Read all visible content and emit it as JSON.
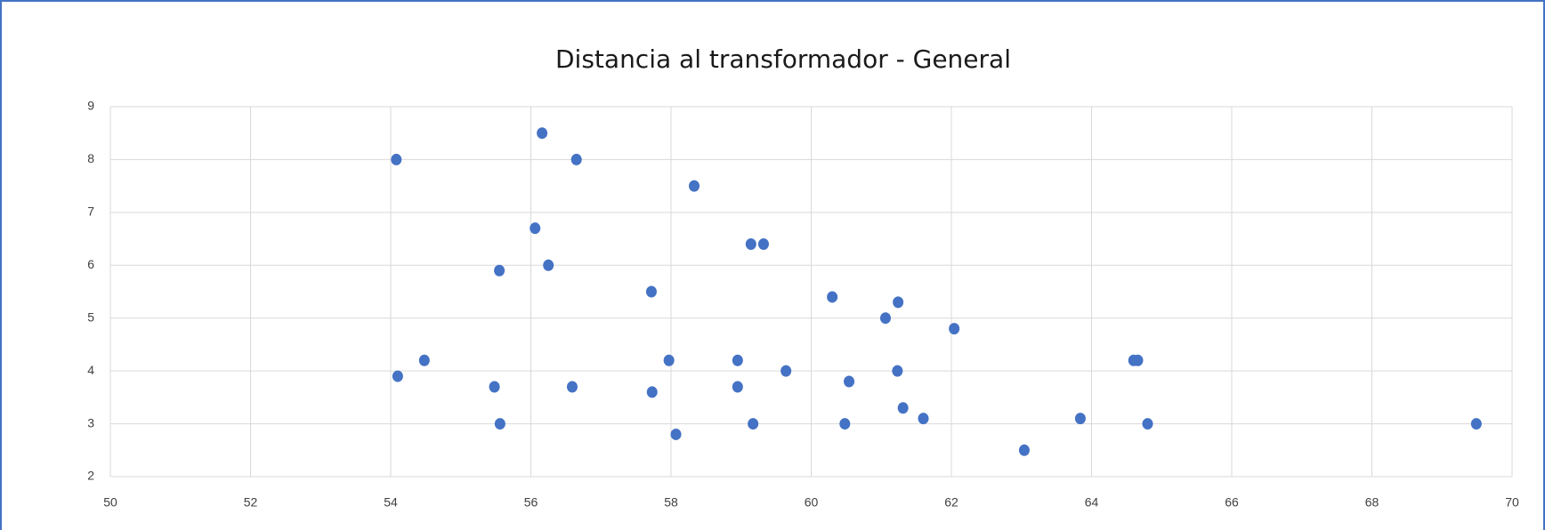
{
  "chart_data": {
    "type": "scatter",
    "title": "Distancia al transformador - General",
    "color": "#4472c4",
    "grid": true,
    "xlim": [
      50,
      70
    ],
    "xticks": [
      50,
      52,
      54,
      56,
      58,
      60,
      62,
      64,
      66,
      68,
      70
    ],
    "ylim": [
      2,
      9
    ],
    "yticks": [
      2,
      3,
      4,
      5,
      6,
      7,
      8,
      9
    ],
    "x": [
      54.08,
      56.16,
      56.65,
      58.33,
      56.06,
      59.14,
      59.32,
      55.55,
      56.25,
      57.72,
      60.3,
      61.24,
      61.06,
      62.04,
      54.1,
      54.48,
      55.48,
      55.56,
      56.59,
      57.73,
      57.97,
      58.07,
      58.95,
      58.95,
      59.17,
      59.64,
      60.48,
      60.54,
      61.23,
      61.31,
      61.6,
      63.04,
      63.84,
      64.6,
      64.66,
      64.8,
      69.49
    ],
    "y": [
      8.0,
      8.5,
      8.0,
      7.5,
      6.7,
      6.4,
      6.4,
      5.9,
      6.0,
      5.5,
      5.4,
      5.3,
      5.0,
      4.8,
      3.9,
      4.2,
      3.7,
      3.0,
      3.7,
      3.6,
      4.2,
      2.8,
      4.2,
      3.7,
      3.0,
      4.0,
      3.0,
      3.8,
      4.0,
      3.3,
      3.1,
      2.5,
      3.1,
      4.2,
      4.2,
      3.0,
      3.0
    ]
  }
}
